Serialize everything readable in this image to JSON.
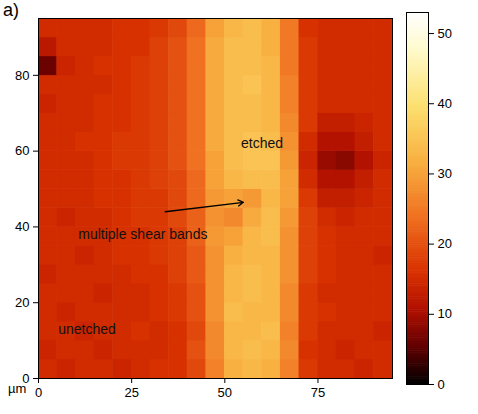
{
  "chart_data": {
    "type": "heatmap",
    "panel_label": "a)",
    "x_label": "µm",
    "x": [
      2.5,
      7.5,
      12.5,
      17.5,
      22.5,
      27.5,
      32.5,
      37.5,
      42.5,
      47.5,
      52.5,
      57.5,
      62.5,
      67.5,
      72.5,
      77.5,
      82.5,
      87.5,
      92.5
    ],
    "y": [
      2.5,
      7.5,
      12.5,
      17.5,
      22.5,
      27.5,
      32.5,
      37.5,
      42.5,
      47.5,
      52.5,
      57.5,
      62.5,
      67.5,
      72.5,
      77.5,
      82.5,
      87.5,
      92.5
    ],
    "values": [
      [
        15,
        14,
        15,
        15,
        14,
        15,
        16,
        16,
        19,
        26,
        32,
        33,
        32,
        26,
        17,
        15,
        15,
        14,
        15
      ],
      [
        14,
        15,
        15,
        14,
        15,
        15,
        15,
        16,
        20,
        27,
        33,
        34,
        33,
        27,
        16,
        15,
        14,
        15,
        15
      ],
      [
        15,
        15,
        14,
        15,
        15,
        16,
        15,
        16,
        19,
        27,
        33,
        33,
        34,
        26,
        17,
        15,
        15,
        15,
        14
      ],
      [
        15,
        14,
        15,
        15,
        15,
        15,
        16,
        17,
        20,
        28,
        34,
        33,
        33,
        27,
        17,
        16,
        15,
        15,
        15
      ],
      [
        15,
        15,
        15,
        14,
        15,
        15,
        16,
        17,
        20,
        28,
        33,
        34,
        33,
        27,
        17,
        15,
        15,
        15,
        15
      ],
      [
        14,
        15,
        15,
        15,
        15,
        16,
        16,
        18,
        21,
        28,
        33,
        34,
        33,
        28,
        18,
        16,
        15,
        15,
        15
      ],
      [
        15,
        15,
        14,
        15,
        16,
        16,
        17,
        18,
        21,
        28,
        32,
        33,
        33,
        28,
        18,
        16,
        15,
        15,
        14
      ],
      [
        15,
        15,
        15,
        15,
        16,
        16,
        17,
        18,
        22,
        29,
        30,
        33,
        34,
        28,
        18,
        16,
        15,
        15,
        15
      ],
      [
        15,
        14,
        15,
        15,
        16,
        17,
        17,
        19,
        22,
        28,
        27,
        31,
        34,
        29,
        18,
        15,
        14,
        15,
        15
      ],
      [
        15,
        15,
        15,
        16,
        16,
        17,
        17,
        19,
        23,
        29,
        30,
        29,
        33,
        30,
        17,
        13,
        13,
        14,
        15
      ],
      [
        15,
        15,
        15,
        16,
        16,
        17,
        18,
        19,
        23,
        30,
        33,
        34,
        34,
        30,
        15,
        11,
        11,
        13,
        15
      ],
      [
        15,
        15,
        15,
        16,
        17,
        17,
        18,
        20,
        24,
        30,
        34,
        35,
        35,
        29,
        14,
        9,
        8,
        11,
        14
      ],
      [
        15,
        15,
        16,
        16,
        17,
        17,
        18,
        20,
        24,
        31,
        34,
        35,
        34,
        28,
        15,
        11,
        11,
        13,
        15
      ],
      [
        15,
        15,
        15,
        16,
        16,
        17,
        18,
        20,
        24,
        31,
        34,
        34,
        33,
        27,
        17,
        13,
        13,
        14,
        15
      ],
      [
        14,
        15,
        15,
        16,
        16,
        17,
        18,
        20,
        24,
        31,
        34,
        34,
        33,
        26,
        17,
        15,
        15,
        15,
        15
      ],
      [
        15,
        15,
        15,
        15,
        16,
        17,
        18,
        20,
        24,
        31,
        34,
        35,
        33,
        26,
        17,
        15,
        15,
        15,
        15
      ],
      [
        6,
        14,
        15,
        16,
        16,
        17,
        18,
        20,
        24,
        31,
        34,
        34,
        33,
        25,
        17,
        15,
        15,
        15,
        15
      ],
      [
        12,
        15,
        15,
        15,
        16,
        16,
        18,
        20,
        24,
        31,
        34,
        34,
        32,
        25,
        17,
        15,
        15,
        15,
        15
      ],
      [
        15,
        15,
        15,
        15,
        16,
        16,
        17,
        19,
        23,
        30,
        33,
        34,
        32,
        25,
        16,
        15,
        15,
        15,
        15
      ]
    ],
    "xlim": [
      0,
      95
    ],
    "ylim": [
      0,
      95
    ],
    "xticks": [
      0,
      25,
      50,
      75
    ],
    "yticks": [
      0,
      20,
      40,
      60,
      80
    ],
    "colorbar": {
      "range": [
        0,
        53
      ],
      "ticks": [
        0,
        10,
        20,
        30,
        40,
        50
      ]
    },
    "annotations": [
      {
        "text": "etched",
        "x": 60,
        "y": 62
      },
      {
        "text": "multiple shear bands",
        "x": 28,
        "y": 38,
        "arrow_from": [
          34,
          44
        ],
        "arrow_to": [
          55,
          46.5
        ]
      },
      {
        "text": "unetched",
        "x": 13,
        "y": 13
      }
    ]
  }
}
